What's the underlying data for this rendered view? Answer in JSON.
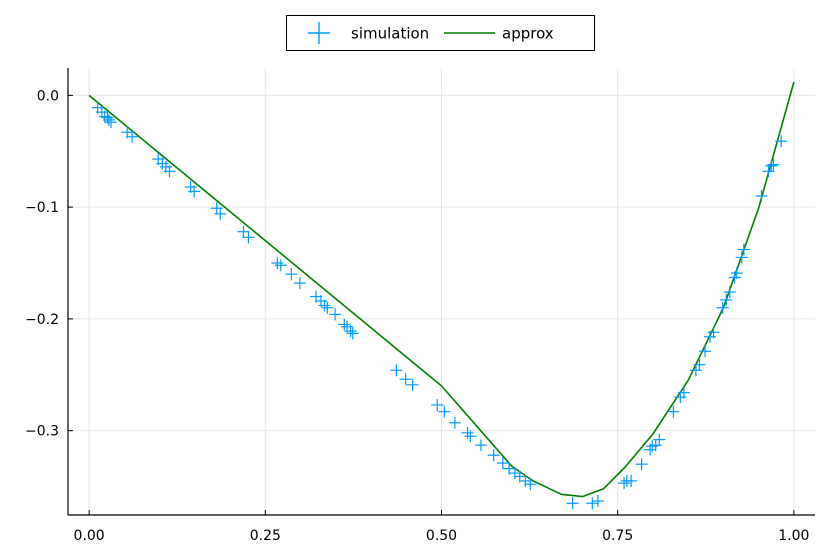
{
  "chart_data": {
    "type": "scatter",
    "title": "",
    "xlabel": "",
    "ylabel": "",
    "xlim": [
      -0.03,
      1.03
    ],
    "ylim": [
      -0.3755,
      0.0245
    ],
    "xticks": [
      0.0,
      0.25,
      0.5,
      0.75,
      1.0
    ],
    "xtick_labels": [
      "0.00",
      "0.25",
      "0.50",
      "0.75",
      "1.00"
    ],
    "yticks": [
      0.0,
      -0.1,
      -0.2,
      -0.3
    ],
    "ytick_labels": [
      "0.0",
      "−0.1",
      "−0.2",
      "−0.3"
    ],
    "grid": true,
    "legend_position": "top-center",
    "series": [
      {
        "name": "simulation",
        "kind": "scatter",
        "marker": "cross",
        "color": "#009AFA",
        "points": [
          [
            0.012,
            -0.011
          ],
          [
            0.018,
            -0.015
          ],
          [
            0.022,
            -0.019
          ],
          [
            0.026,
            -0.02
          ],
          [
            0.028,
            -0.022
          ],
          [
            0.031,
            -0.024
          ],
          [
            0.054,
            -0.033
          ],
          [
            0.061,
            -0.037
          ],
          [
            0.098,
            -0.057
          ],
          [
            0.104,
            -0.061
          ],
          [
            0.109,
            -0.064
          ],
          [
            0.114,
            -0.068
          ],
          [
            0.144,
            -0.082
          ],
          [
            0.149,
            -0.086
          ],
          [
            0.181,
            -0.101
          ],
          [
            0.186,
            -0.106
          ],
          [
            0.219,
            -0.122
          ],
          [
            0.226,
            -0.127
          ],
          [
            0.267,
            -0.15
          ],
          [
            0.272,
            -0.152
          ],
          [
            0.287,
            -0.16
          ],
          [
            0.299,
            -0.168
          ],
          [
            0.322,
            -0.18
          ],
          [
            0.329,
            -0.184
          ],
          [
            0.334,
            -0.188
          ],
          [
            0.338,
            -0.19
          ],
          [
            0.349,
            -0.196
          ],
          [
            0.362,
            -0.205
          ],
          [
            0.366,
            -0.207
          ],
          [
            0.371,
            -0.211
          ],
          [
            0.374,
            -0.213
          ],
          [
            0.436,
            -0.246
          ],
          [
            0.449,
            -0.254
          ],
          [
            0.459,
            -0.259
          ],
          [
            0.494,
            -0.277
          ],
          [
            0.504,
            -0.283
          ],
          [
            0.519,
            -0.293
          ],
          [
            0.537,
            -0.302
          ],
          [
            0.541,
            -0.305
          ],
          [
            0.556,
            -0.313
          ],
          [
            0.574,
            -0.322
          ],
          [
            0.587,
            -0.329
          ],
          [
            0.596,
            -0.334
          ],
          [
            0.604,
            -0.338
          ],
          [
            0.611,
            -0.341
          ],
          [
            0.619,
            -0.345
          ],
          [
            0.626,
            -0.348
          ],
          [
            0.686,
            -0.365
          ],
          [
            0.714,
            -0.365
          ],
          [
            0.722,
            -0.363
          ],
          [
            0.759,
            -0.347
          ],
          [
            0.763,
            -0.345
          ],
          [
            0.769,
            -0.345
          ],
          [
            0.784,
            -0.33
          ],
          [
            0.796,
            -0.317
          ],
          [
            0.799,
            -0.314
          ],
          [
            0.804,
            -0.313
          ],
          [
            0.809,
            -0.308
          ],
          [
            0.829,
            -0.283
          ],
          [
            0.839,
            -0.27
          ],
          [
            0.844,
            -0.266
          ],
          [
            0.861,
            -0.246
          ],
          [
            0.866,
            -0.241
          ],
          [
            0.874,
            -0.229
          ],
          [
            0.881,
            -0.216
          ],
          [
            0.886,
            -0.212
          ],
          [
            0.899,
            -0.19
          ],
          [
            0.904,
            -0.183
          ],
          [
            0.909,
            -0.176
          ],
          [
            0.916,
            -0.163
          ],
          [
            0.919,
            -0.159
          ],
          [
            0.926,
            -0.145
          ],
          [
            0.929,
            -0.138
          ],
          [
            0.954,
            -0.09
          ],
          [
            0.964,
            -0.068
          ],
          [
            0.968,
            -0.063
          ],
          [
            0.971,
            -0.062
          ],
          [
            0.982,
            -0.041
          ]
        ]
      },
      {
        "name": "approx",
        "kind": "line",
        "color": "#008000",
        "points": [
          [
            0.0,
            0.0
          ],
          [
            0.1,
            -0.052
          ],
          [
            0.2,
            -0.104
          ],
          [
            0.3,
            -0.156
          ],
          [
            0.4,
            -0.208
          ],
          [
            0.5,
            -0.26
          ],
          [
            0.6,
            -0.332
          ],
          [
            0.63,
            -0.345
          ],
          [
            0.67,
            -0.357
          ],
          [
            0.7,
            -0.359
          ],
          [
            0.73,
            -0.352
          ],
          [
            0.76,
            -0.333
          ],
          [
            0.8,
            -0.303
          ],
          [
            0.85,
            -0.255
          ],
          [
            0.9,
            -0.19
          ],
          [
            0.95,
            -0.101
          ],
          [
            1.0,
            0.012
          ]
        ]
      }
    ]
  }
}
